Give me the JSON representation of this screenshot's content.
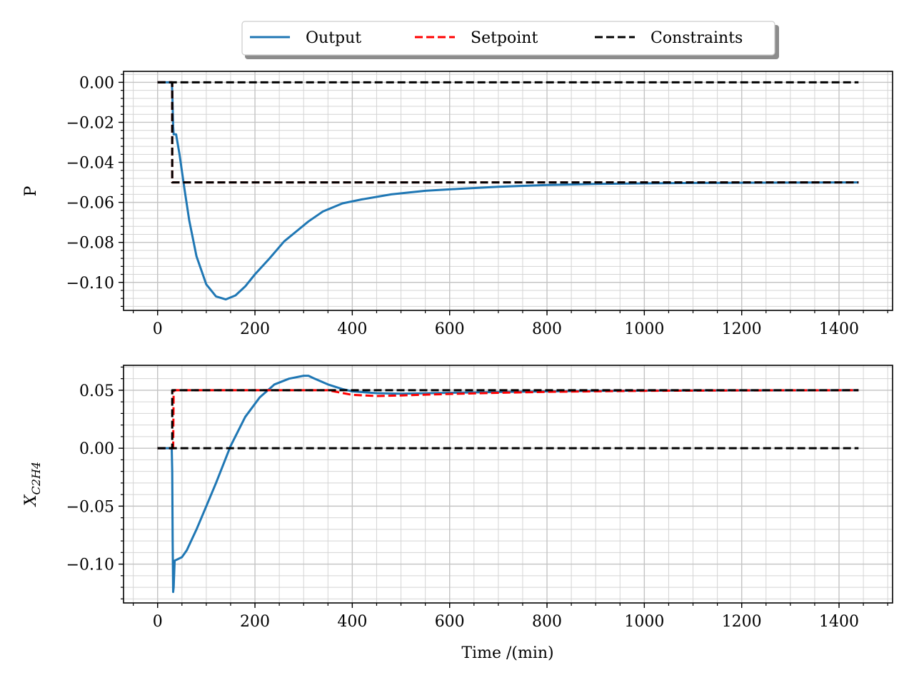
{
  "legend": {
    "entries": [
      {
        "label": "Output",
        "color": "#1f77b4",
        "style": "solid"
      },
      {
        "label": "Setpoint",
        "color": "#ff0000",
        "style": "dashed"
      },
      {
        "label": "Constraints",
        "color": "#000000",
        "style": "dashed"
      }
    ],
    "placement": "top-center"
  },
  "chart_data": [
    {
      "type": "line",
      "ylabel": "P",
      "xlabel": "",
      "xlim": [
        -70,
        1510
      ],
      "ylim": [
        -0.114,
        0.0055
      ],
      "xticks": [
        0,
        200,
        400,
        600,
        800,
        1000,
        1200,
        1400
      ],
      "xtick_labels": [
        "0",
        "200",
        "400",
        "600",
        "800",
        "1000",
        "1200",
        "1400"
      ],
      "yticks": [
        0.0,
        -0.02,
        -0.04,
        -0.06,
        -0.08,
        -0.1
      ],
      "ytick_labels": [
        "0.00",
        "−0.02",
        "−0.04",
        "−0.06",
        "−0.08",
        "−0.10"
      ],
      "grid": true,
      "minor_grid": true,
      "series": [
        {
          "name": "Output",
          "color": "#1f77b4",
          "style": "solid",
          "x": [
            0,
            29,
            30,
            32,
            33,
            38,
            45,
            55,
            65,
            80,
            100,
            120,
            140,
            160,
            180,
            200,
            230,
            260,
            290,
            310,
            340,
            380,
            420,
            480,
            550,
            620,
            700,
            800,
            900,
            1000,
            1100,
            1200,
            1300,
            1440
          ],
          "y": [
            0,
            0,
            -0.004,
            -0.022,
            -0.026,
            -0.026,
            -0.036,
            -0.053,
            -0.069,
            -0.087,
            -0.101,
            -0.107,
            -0.1085,
            -0.1065,
            -0.102,
            -0.096,
            -0.088,
            -0.0795,
            -0.0735,
            -0.0695,
            -0.0645,
            -0.0605,
            -0.0585,
            -0.056,
            -0.0542,
            -0.0532,
            -0.0522,
            -0.0513,
            -0.0508,
            -0.0505,
            -0.0503,
            -0.0502,
            -0.0501,
            -0.05
          ]
        },
        {
          "name": "Setpoint",
          "color": "#ff0000",
          "style": "dashed",
          "x": [
            0,
            30,
            30,
            1440
          ],
          "y": [
            0,
            0,
            -0.05,
            -0.05
          ]
        },
        {
          "name": "Constraints (upper)",
          "color": "#000000",
          "style": "dashed",
          "x": [
            0,
            1440
          ],
          "y": [
            0,
            0
          ]
        },
        {
          "name": "Constraints (lower)",
          "color": "#000000",
          "style": "dashed",
          "x": [
            0,
            30,
            30,
            1440
          ],
          "y": [
            0,
            0,
            -0.05,
            -0.05
          ]
        }
      ]
    },
    {
      "type": "line",
      "ylabel": "X_C2H4",
      "ylabel_main": "X",
      "ylabel_sub": "C2H4",
      "xlabel": "Time /(min)",
      "xlim": [
        -70,
        1510
      ],
      "ylim": [
        -0.1335,
        0.0715
      ],
      "xticks": [
        0,
        200,
        400,
        600,
        800,
        1000,
        1200,
        1400
      ],
      "xtick_labels": [
        "0",
        "200",
        "400",
        "600",
        "800",
        "1000",
        "1200",
        "1400"
      ],
      "yticks": [
        0.05,
        0.0,
        -0.05,
        -0.1
      ],
      "ytick_labels": [
        "0.05",
        "0.00",
        "−0.05",
        "−0.10"
      ],
      "grid": true,
      "minor_grid": true,
      "series": [
        {
          "name": "Output",
          "color": "#1f77b4",
          "style": "solid",
          "x": [
            0,
            29,
            30,
            31,
            32,
            33,
            35,
            40,
            50,
            60,
            80,
            100,
            120,
            150,
            180,
            210,
            240,
            270,
            300,
            310,
            320,
            350,
            380,
            400,
            450,
            500,
            600,
            700,
            800,
            900,
            1000,
            1200,
            1440
          ],
          "y": [
            0,
            0,
            -0.02,
            -0.08,
            -0.124,
            -0.12,
            -0.097,
            -0.096,
            -0.094,
            -0.088,
            -0.07,
            -0.05,
            -0.03,
            0.002,
            0.027,
            0.044,
            0.055,
            0.06,
            0.0625,
            0.0625,
            0.0605,
            0.055,
            0.051,
            0.049,
            0.0475,
            0.047,
            0.0478,
            0.0485,
            0.049,
            0.0495,
            0.0497,
            0.0499,
            0.05
          ]
        },
        {
          "name": "Setpoint",
          "color": "#ff0000",
          "style": "dashed",
          "x": [
            0,
            30,
            31,
            32,
            33,
            60,
            200,
            300,
            350,
            400,
            450,
            500,
            600,
            700,
            800,
            900,
            1000,
            1200,
            1440
          ],
          "y": [
            0,
            0,
            0.002,
            -0.002,
            0.05,
            0.05,
            0.05,
            0.05,
            0.05,
            0.046,
            0.045,
            0.0455,
            0.0468,
            0.0478,
            0.0486,
            0.0491,
            0.0495,
            0.0499,
            0.05
          ]
        },
        {
          "name": "Constraints (upper)",
          "color": "#000000",
          "style": "dashed",
          "x": [
            0,
            30,
            30,
            1440
          ],
          "y": [
            0,
            0,
            0.05,
            0.05
          ]
        },
        {
          "name": "Constraints (lower)",
          "color": "#000000",
          "style": "dashed",
          "x": [
            0,
            1440
          ],
          "y": [
            0,
            0
          ]
        }
      ]
    }
  ]
}
